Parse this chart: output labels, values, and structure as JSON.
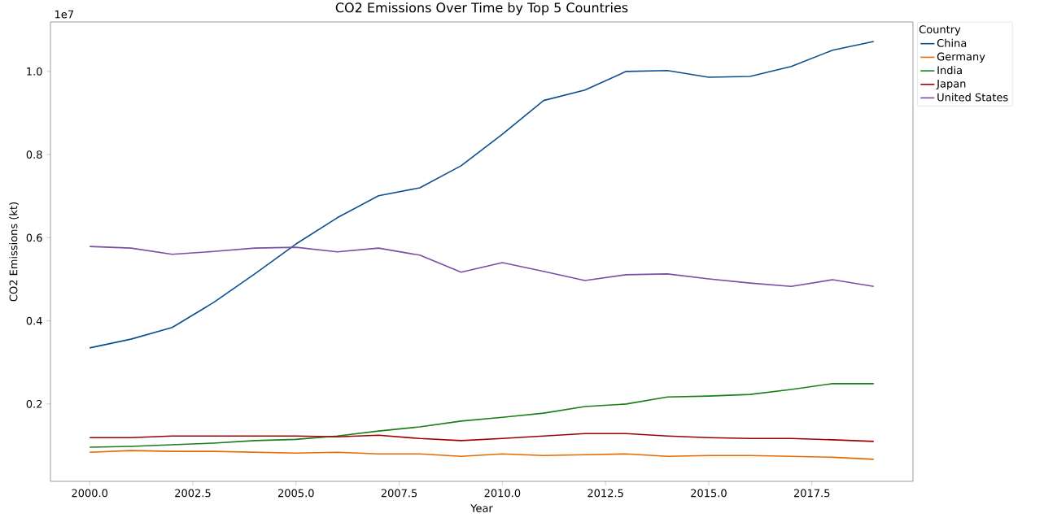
{
  "chart_data": {
    "type": "line",
    "title": "CO2 Emissions Over Time by Top 5 Countries",
    "xlabel": "Year",
    "ylabel": "CO2 Emissions (kt)",
    "legend_title": "Country",
    "legend": "top right",
    "grid": false,
    "annotations": [
      "1e7"
    ],
    "x": [
      2000,
      2001,
      2002,
      2003,
      2004,
      2005,
      2006,
      2007,
      2008,
      2009,
      2010,
      2011,
      2012,
      2013,
      2014,
      2015,
      2016,
      2017,
      2018,
      2019
    ],
    "xlim": [
      1999.05,
      2019.95
    ],
    "xticks": [
      {
        "value": 2000,
        "label": "2000.0"
      },
      {
        "value": 2002.5,
        "label": "2002.5"
      },
      {
        "value": 2005,
        "label": "2005.0"
      },
      {
        "value": 2007.5,
        "label": "2007.5"
      },
      {
        "value": 2010,
        "label": "2010.0"
      },
      {
        "value": 2012.5,
        "label": "2012.5"
      },
      {
        "value": 2015,
        "label": "2015.0"
      },
      {
        "value": 2017.5,
        "label": "2017.5"
      }
    ],
    "ylim": [
      0.014,
      1.119
    ],
    "yticks": [
      {
        "value": 0.2,
        "label": "0.2"
      },
      {
        "value": 0.4,
        "label": "0.4"
      },
      {
        "value": 0.6,
        "label": "0.6"
      },
      {
        "value": 0.8,
        "label": "0.8"
      },
      {
        "value": 1.0,
        "label": "1.0"
      }
    ],
    "series": [
      {
        "name": "China",
        "color": "#0b4f8f",
        "values": [
          0.335,
          0.356,
          0.384,
          0.444,
          0.513,
          0.585,
          0.648,
          0.701,
          0.72,
          0.773,
          0.849,
          0.93,
          0.955,
          1.0,
          1.002,
          0.986,
          0.988,
          1.012,
          1.051,
          1.072
        ]
      },
      {
        "name": "Germany",
        "color": "#e66a00",
        "values": [
          0.084,
          0.088,
          0.086,
          0.086,
          0.084,
          0.082,
          0.084,
          0.08,
          0.08,
          0.074,
          0.08,
          0.076,
          0.078,
          0.08,
          0.074,
          0.076,
          0.076,
          0.074,
          0.072,
          0.067
        ]
      },
      {
        "name": "India",
        "color": "#1a7f1a",
        "values": [
          0.096,
          0.098,
          0.102,
          0.106,
          0.112,
          0.115,
          0.123,
          0.135,
          0.145,
          0.159,
          0.168,
          0.178,
          0.194,
          0.2,
          0.217,
          0.219,
          0.223,
          0.235,
          0.249,
          0.249
        ]
      },
      {
        "name": "Japan",
        "color": "#a00000",
        "values": [
          0.119,
          0.119,
          0.123,
          0.123,
          0.123,
          0.123,
          0.121,
          0.125,
          0.117,
          0.112,
          0.117,
          0.123,
          0.129,
          0.129,
          0.123,
          0.119,
          0.117,
          0.117,
          0.114,
          0.11
        ]
      },
      {
        "name": "United States",
        "color": "#7b4ea3",
        "values": [
          0.579,
          0.575,
          0.56,
          0.567,
          0.575,
          0.577,
          0.566,
          0.575,
          0.558,
          0.517,
          0.54,
          0.519,
          0.497,
          0.511,
          0.513,
          0.501,
          0.491,
          0.483,
          0.499,
          0.483
        ]
      }
    ]
  }
}
